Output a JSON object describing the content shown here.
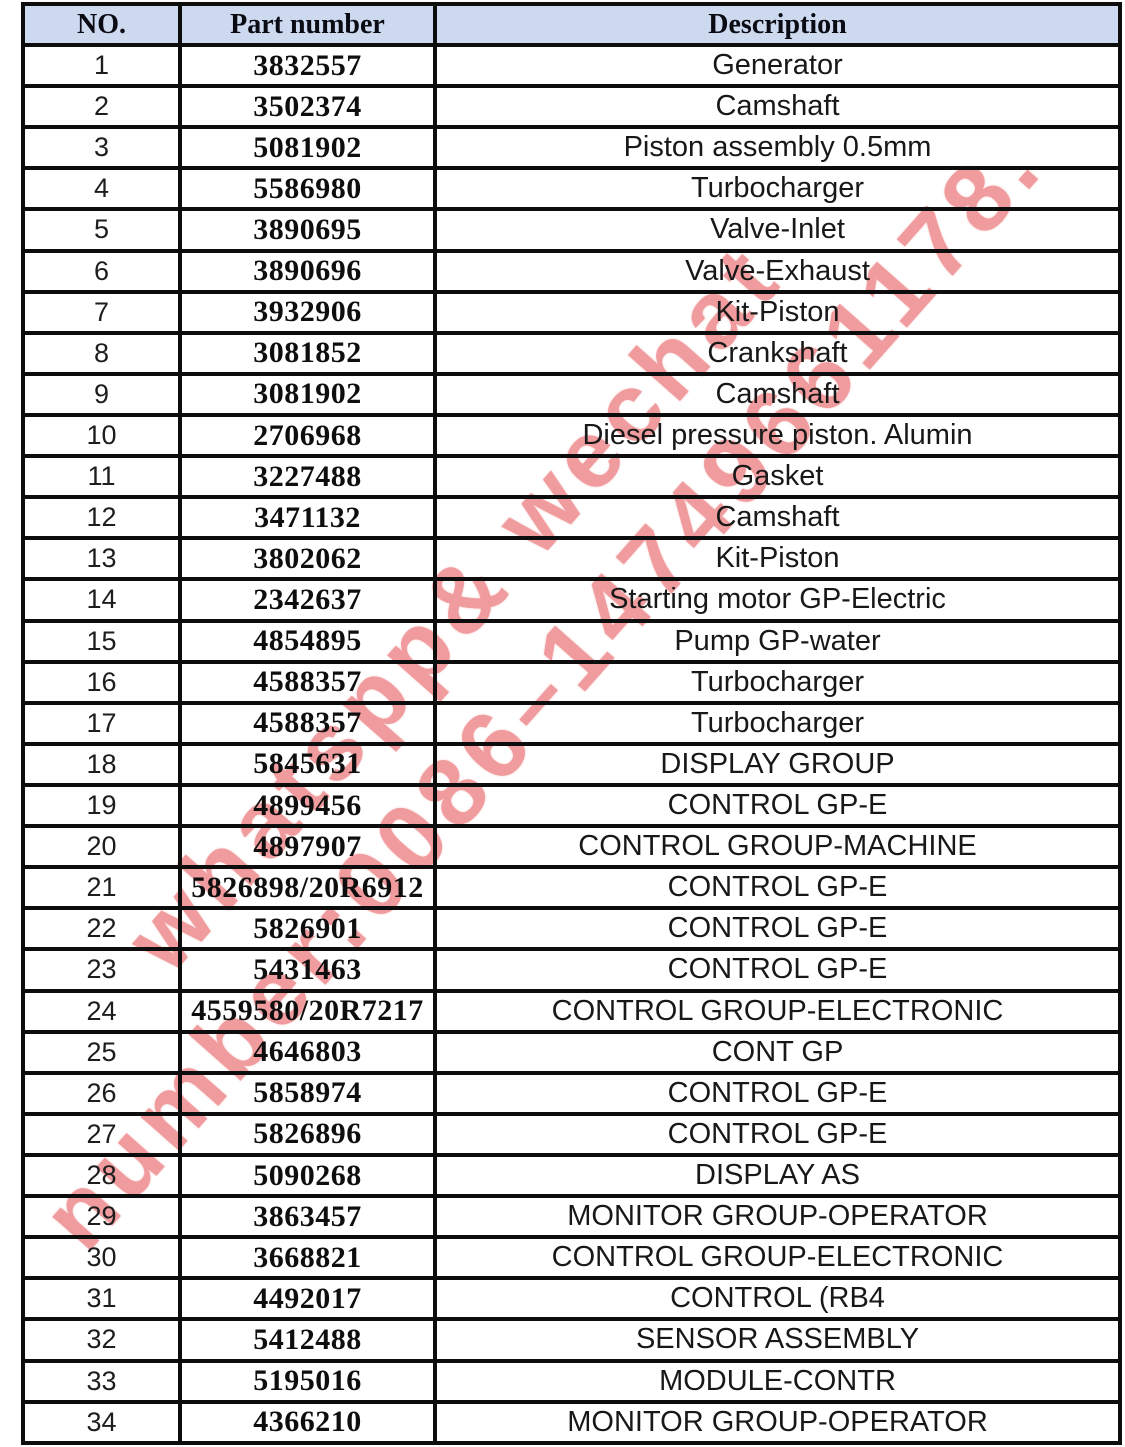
{
  "colors": {
    "header_bg": "#cdd9ee",
    "border": "#0d0d0d",
    "watermark": "#ee8a8c"
  },
  "watermark": {
    "line1": "whatspp& wechat",
    "line2": "number:0086–14749661178."
  },
  "table": {
    "headers": [
      "NO.",
      "Part number",
      "Description"
    ],
    "rows": [
      {
        "no": "1",
        "part": "3832557",
        "desc": "Generator"
      },
      {
        "no": "2",
        "part": "3502374",
        "desc": "Camshaft"
      },
      {
        "no": "3",
        "part": "5081902",
        "desc": "Piston assembly 0.5mm"
      },
      {
        "no": "4",
        "part": "5586980",
        "desc": "Turbocharger"
      },
      {
        "no": "5",
        "part": "3890695",
        "desc": "Valve-Inlet"
      },
      {
        "no": "6",
        "part": "3890696",
        "desc": "Valve-Exhaust"
      },
      {
        "no": "7",
        "part": "3932906",
        "desc": "Kit-Piston"
      },
      {
        "no": "8",
        "part": "3081852",
        "desc": "Crankshaft"
      },
      {
        "no": "9",
        "part": "3081902",
        "desc": "Camshaft"
      },
      {
        "no": "10",
        "part": "2706968",
        "desc": "Diesel pressure piston. Alumin"
      },
      {
        "no": "11",
        "part": "3227488",
        "desc": "Gasket"
      },
      {
        "no": "12",
        "part": "3471132",
        "desc": "Camshaft"
      },
      {
        "no": "13",
        "part": "3802062",
        "desc": "Kit-Piston"
      },
      {
        "no": "14",
        "part": "2342637",
        "desc": "Starting motor GP-Electric"
      },
      {
        "no": "15",
        "part": "4854895",
        "desc": "Pump GP-water"
      },
      {
        "no": "16",
        "part": "4588357",
        "desc": "Turbocharger"
      },
      {
        "no": "17",
        "part": "4588357",
        "desc": "Turbocharger"
      },
      {
        "no": "18",
        "part": "5845631",
        "desc": "DISPLAY GROUP"
      },
      {
        "no": "19",
        "part": "4899456",
        "desc": "CONTROL GP-E"
      },
      {
        "no": "20",
        "part": "4897907",
        "desc": "CONTROL GROUP-MACHINE"
      },
      {
        "no": "21",
        "part": "5826898/20R6912",
        "desc": "CONTROL GP-E"
      },
      {
        "no": "22",
        "part": "5826901",
        "desc": "CONTROL GP-E"
      },
      {
        "no": "23",
        "part": "5431463",
        "desc": "CONTROL GP-E"
      },
      {
        "no": "24",
        "part": "4559580/20R7217",
        "desc": "CONTROL GROUP-ELECTRONIC"
      },
      {
        "no": "25",
        "part": "4646803",
        "desc": "CONT GP"
      },
      {
        "no": "26",
        "part": "5858974",
        "desc": "CONTROL GP-E"
      },
      {
        "no": "27",
        "part": "5826896",
        "desc": "CONTROL GP-E"
      },
      {
        "no": "28",
        "part": "5090268",
        "desc": "DISPLAY AS"
      },
      {
        "no": "29",
        "part": "3863457",
        "desc": "MONITOR GROUP-OPERATOR"
      },
      {
        "no": "30",
        "part": "3668821",
        "desc": "CONTROL GROUP-ELECTRONIC"
      },
      {
        "no": "31",
        "part": "4492017",
        "desc": "CONTROL (RB4"
      },
      {
        "no": "32",
        "part": "5412488",
        "desc": "SENSOR ASSEMBLY"
      },
      {
        "no": "33",
        "part": "5195016",
        "desc": "MODULE-CONTR"
      },
      {
        "no": "34",
        "part": "4366210",
        "desc": "MONITOR GROUP-OPERATOR"
      }
    ]
  }
}
